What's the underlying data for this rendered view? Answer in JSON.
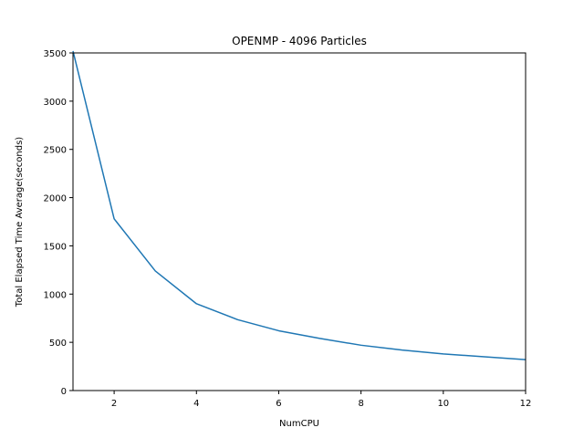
{
  "chart_data": {
    "type": "line",
    "title": "OPENMP - 4096 Particles",
    "xlabel": "NumCPU",
    "ylabel": "Total Elapsed Time Average(seconds)",
    "xlim": [
      1,
      12
    ],
    "ylim": [
      0,
      3500
    ],
    "xticks": [
      2,
      4,
      6,
      8,
      10,
      12
    ],
    "yticks": [
      0,
      500,
      1000,
      1500,
      2000,
      2500,
      3000,
      3500
    ],
    "grid": false,
    "legend": "none",
    "series": [
      {
        "color": "#1f77b4",
        "x": [
          1,
          2,
          3,
          4,
          5,
          6,
          7,
          8,
          9,
          10,
          11,
          12
        ],
        "y": [
          3520,
          1780,
          1240,
          900,
          735,
          620,
          540,
          470,
          420,
          380,
          350,
          320
        ]
      }
    ]
  }
}
